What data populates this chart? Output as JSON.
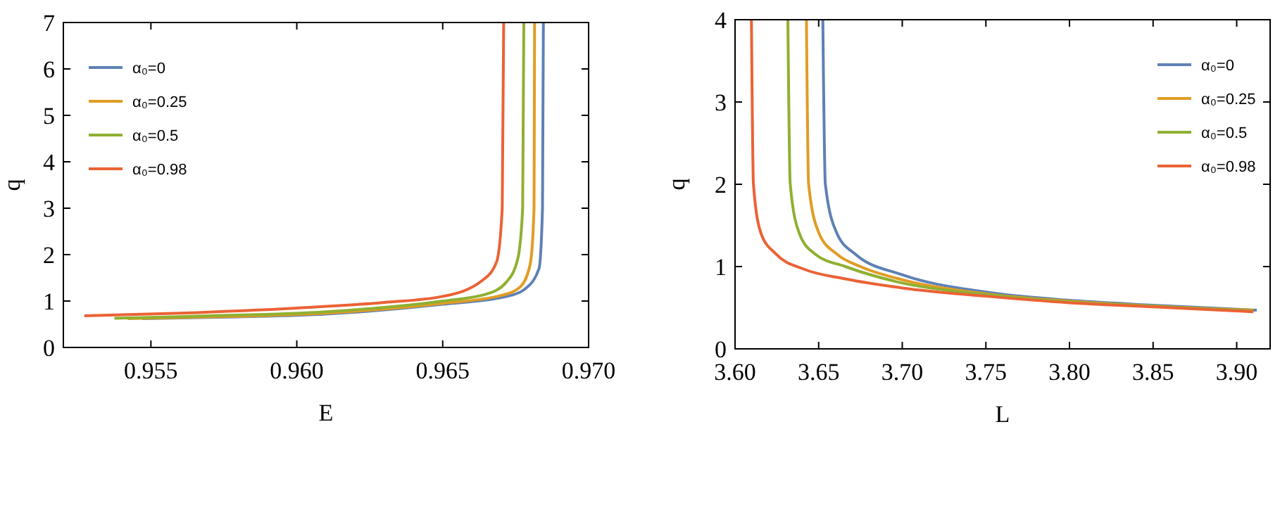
{
  "chart_data": [
    {
      "type": "line",
      "xlabel": "E",
      "ylabel": "q",
      "xlim": [
        0.952,
        0.97
      ],
      "xticks": [
        0.955,
        {
          "value": 0.96,
          "label": "0.960"
        },
        0.965,
        {
          "value": 0.97,
          "label": "0.970"
        }
      ],
      "ylim": [
        0,
        7
      ],
      "yticks": [
        0,
        1,
        2,
        3,
        4,
        5,
        6,
        7
      ],
      "legend": "top left",
      "grid": false,
      "series": [
        {
          "name": "α₀=0",
          "color": "#5e81b5",
          "x": [
            0.9547,
            0.958,
            0.961,
            0.965,
            0.9672,
            0.9678,
            0.9683,
            0.96842,
            0.96845
          ],
          "values": [
            0.62,
            0.66,
            0.72,
            0.93,
            1.1,
            1.25,
            1.7,
            3,
            7
          ]
        },
        {
          "name": "α₀=0.25",
          "color": "#e19c24",
          "x": [
            0.9542,
            0.958,
            0.961,
            0.965,
            0.967,
            0.96765,
            0.968,
            0.96813,
            0.96815
          ],
          "values": [
            0.62,
            0.67,
            0.74,
            0.95,
            1.12,
            1.3,
            1.8,
            3,
            7
          ]
        },
        {
          "name": "α₀=0.5",
          "color": "#8fb032",
          "x": [
            0.95375,
            0.957,
            0.961,
            0.965,
            0.9665,
            0.96717,
            0.96757,
            0.96774,
            0.96778
          ],
          "values": [
            0.63,
            0.68,
            0.77,
            1.0,
            1.15,
            1.4,
            1.9,
            3,
            7
          ]
        },
        {
          "name": "α₀=0.98",
          "color": "#eb6235",
          "x": [
            0.95272,
            0.956,
            0.96,
            0.963,
            0.965,
            0.96637,
            0.96685,
            0.96704,
            0.96709
          ],
          "values": [
            0.68,
            0.74,
            0.85,
            0.97,
            1.1,
            1.45,
            1.85,
            3,
            7
          ]
        }
      ]
    },
    {
      "type": "line",
      "xlabel": "L",
      "ylabel": "q",
      "xlim": [
        3.6,
        3.92
      ],
      "xticks": [
        {
          "value": 3.6,
          "label": "3.60"
        },
        3.65,
        {
          "value": 3.7,
          "label": "3.70"
        },
        3.75,
        {
          "value": 3.8,
          "label": "3.80"
        },
        3.85,
        {
          "value": 3.9,
          "label": "3.90"
        }
      ],
      "ylim": [
        0,
        4
      ],
      "yticks": [
        0,
        1,
        2,
        3,
        4
      ],
      "legend": "top right",
      "grid": false,
      "series": [
        {
          "name": "α₀=0",
          "color": "#5e81b5",
          "x": [
            3.6525,
            3.654,
            3.661,
            3.672,
            3.7,
            3.75,
            3.8,
            3.85,
            3.912
          ],
          "values": [
            4,
            2,
            1.4,
            1.15,
            0.9,
            0.69,
            0.59,
            0.53,
            0.47
          ]
        },
        {
          "name": "α₀=0.25",
          "color": "#e19c24",
          "x": [
            3.6427,
            3.644,
            3.6503,
            3.661,
            3.675,
            3.7,
            3.75,
            3.8,
            3.85,
            3.91
          ],
          "values": [
            4,
            2,
            1.4,
            1.15,
            1.0,
            0.84,
            0.67,
            0.58,
            0.52,
            0.47
          ]
        },
        {
          "name": "α₀=0.5",
          "color": "#8fb032",
          "x": [
            3.6316,
            3.633,
            3.6385,
            3.648,
            3.666,
            3.7,
            3.75,
            3.8,
            3.85,
            3.91
          ],
          "values": [
            4,
            2,
            1.4,
            1.15,
            1.0,
            0.8,
            0.66,
            0.57,
            0.52,
            0.46
          ]
        },
        {
          "name": "α₀=0.98",
          "color": "#eb6235",
          "x": [
            3.6098,
            3.611,
            3.6156,
            3.6246,
            3.641,
            3.666,
            3.7,
            3.75,
            3.8,
            3.85,
            3.91
          ],
          "values": [
            4,
            2,
            1.4,
            1.15,
            0.97,
            0.85,
            0.74,
            0.64,
            0.56,
            0.51,
            0.45
          ]
        }
      ]
    }
  ]
}
